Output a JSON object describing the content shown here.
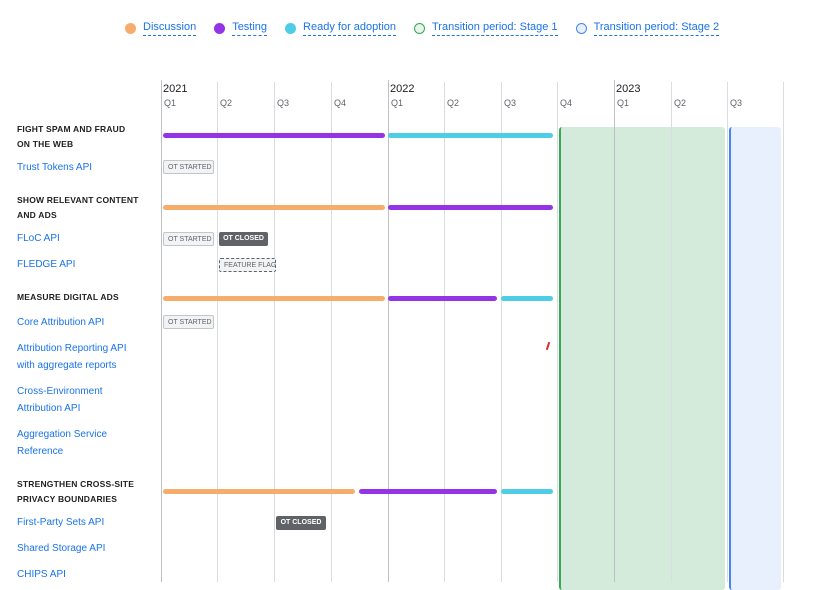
{
  "legend": [
    {
      "label": "Discussion",
      "color": "#f6ad6b",
      "filled": true
    },
    {
      "label": "Testing",
      "color": "#9334e6",
      "filled": true
    },
    {
      "label": "Ready for adoption",
      "color": "#4ecde6",
      "filled": true
    },
    {
      "label": "Transition period: Stage 1",
      "color": "#34a853",
      "filled": false
    },
    {
      "label": "Transition period: Stage 2",
      "color": "#4285f4",
      "filled": false
    }
  ],
  "timeline": {
    "years": [
      "2021",
      "2022",
      "2023"
    ],
    "quarters": [
      "Q1",
      "Q2",
      "Q3",
      "Q4",
      "Q1",
      "Q2",
      "Q3",
      "Q4",
      "Q1",
      "Q2",
      "Q3"
    ]
  },
  "rows": {
    "fight_spam": "FIGHT SPAM AND FRAUD ON THE WEB",
    "trust_tokens": "Trust Tokens API",
    "show_relevant": "SHOW RELEVANT CONTENT AND ADS",
    "floc": "FLoC API",
    "fledge": "FLEDGE API",
    "measure_ads": "MEASURE DIGITAL ADS",
    "core_attribution": "Core Attribution API",
    "attribution_reporting": "Attribution Reporting API with aggregate reports",
    "cross_env": "Cross-Environment Attribution API",
    "aggregation": "Aggregation Service Reference",
    "strengthen": "STRENGTHEN CROSS-SITE PRIVACY BOUNDARIES",
    "first_party": "First-Party Sets API",
    "shared_storage": "Shared Storage API",
    "chips": "CHIPS API"
  },
  "chips": {
    "ot_started": "OT STARTED",
    "ot_closed": "OT CLOSED",
    "feature_flag": "FEATURE FLAG"
  }
}
